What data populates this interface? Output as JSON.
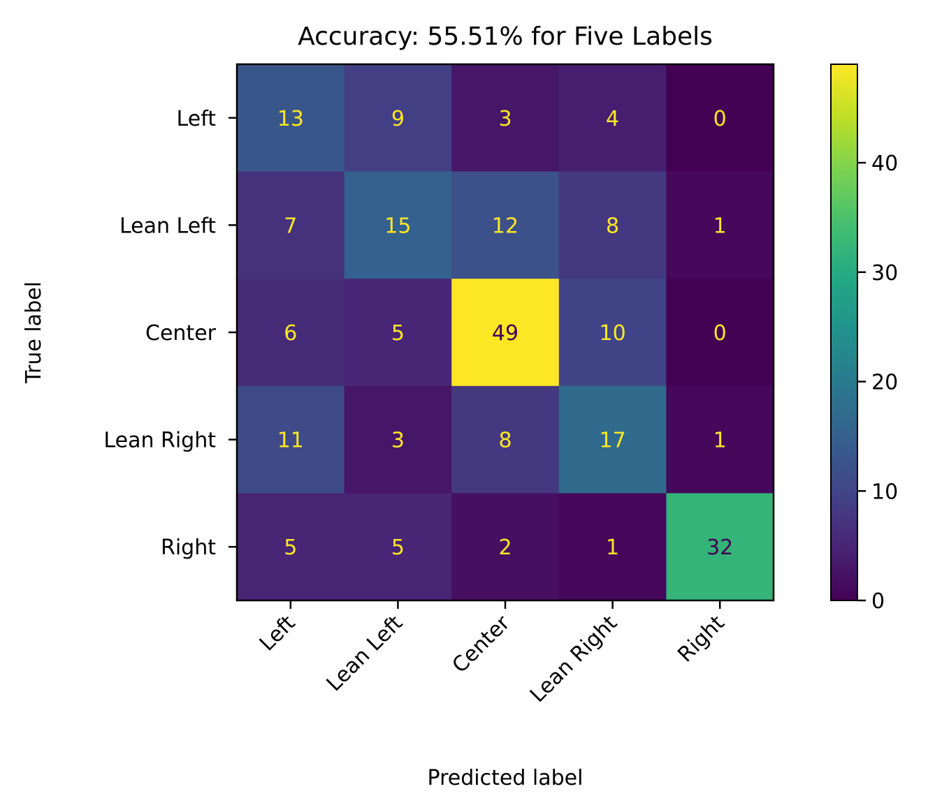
{
  "chart_data": {
    "type": "heatmap",
    "title": "Accuracy: 55.51% for Five Labels",
    "xlabel": "Predicted label",
    "ylabel": "True label",
    "x_categories": [
      "Left",
      "Lean Left",
      "Center",
      "Lean Right",
      "Right"
    ],
    "y_categories": [
      "Left",
      "Lean Left",
      "Center",
      "Lean Right",
      "Right"
    ],
    "matrix": [
      [
        13,
        9,
        3,
        4,
        0
      ],
      [
        7,
        15,
        12,
        8,
        1
      ],
      [
        6,
        5,
        49,
        10,
        0
      ],
      [
        11,
        3,
        8,
        17,
        1
      ],
      [
        5,
        5,
        2,
        1,
        32
      ]
    ],
    "colormap": "viridis",
    "colorbar": {
      "range": [
        0,
        49
      ],
      "ticks": [
        0,
        10,
        20,
        30,
        40
      ]
    },
    "text_colors": {
      "light": "#fde725",
      "dark": "#440154"
    }
  }
}
